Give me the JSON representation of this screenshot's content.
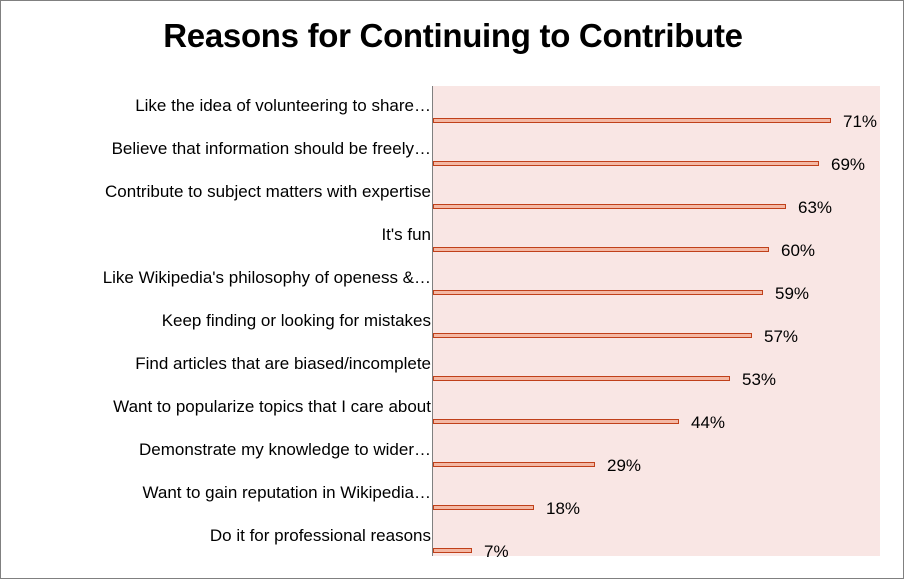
{
  "chart_data": {
    "type": "bar",
    "orientation": "horizontal",
    "title": "Reasons for Continuing to Contribute",
    "xlabel": "",
    "ylabel": "",
    "xlim": [
      0,
      80
    ],
    "value_suffix": "%",
    "categories": [
      "Like the idea of volunteering to share…",
      "Believe that information should be freely…",
      "Contribute to subject matters with expertise",
      "It's fun",
      "Like Wikipedia's philosophy of openess &…",
      "Keep finding or looking for mistakes",
      "Find articles that are biased/incomplete",
      "Want to popularize topics that I care about",
      "Demonstrate my knowledge to wider…",
      "Want to gain reputation in Wikipedia…",
      "Do it for professional reasons"
    ],
    "values": [
      71,
      69,
      63,
      60,
      59,
      57,
      53,
      44,
      29,
      18,
      7
    ],
    "value_labels": [
      "71%",
      "69%",
      "63%",
      "60%",
      "59%",
      "57%",
      "53%",
      "44%",
      "29%",
      "18%",
      "7%"
    ],
    "colors": {
      "bar_fill": "#f4b8a4",
      "bar_edge": "#c0401a",
      "plot_background": "#f9e6e4"
    }
  }
}
